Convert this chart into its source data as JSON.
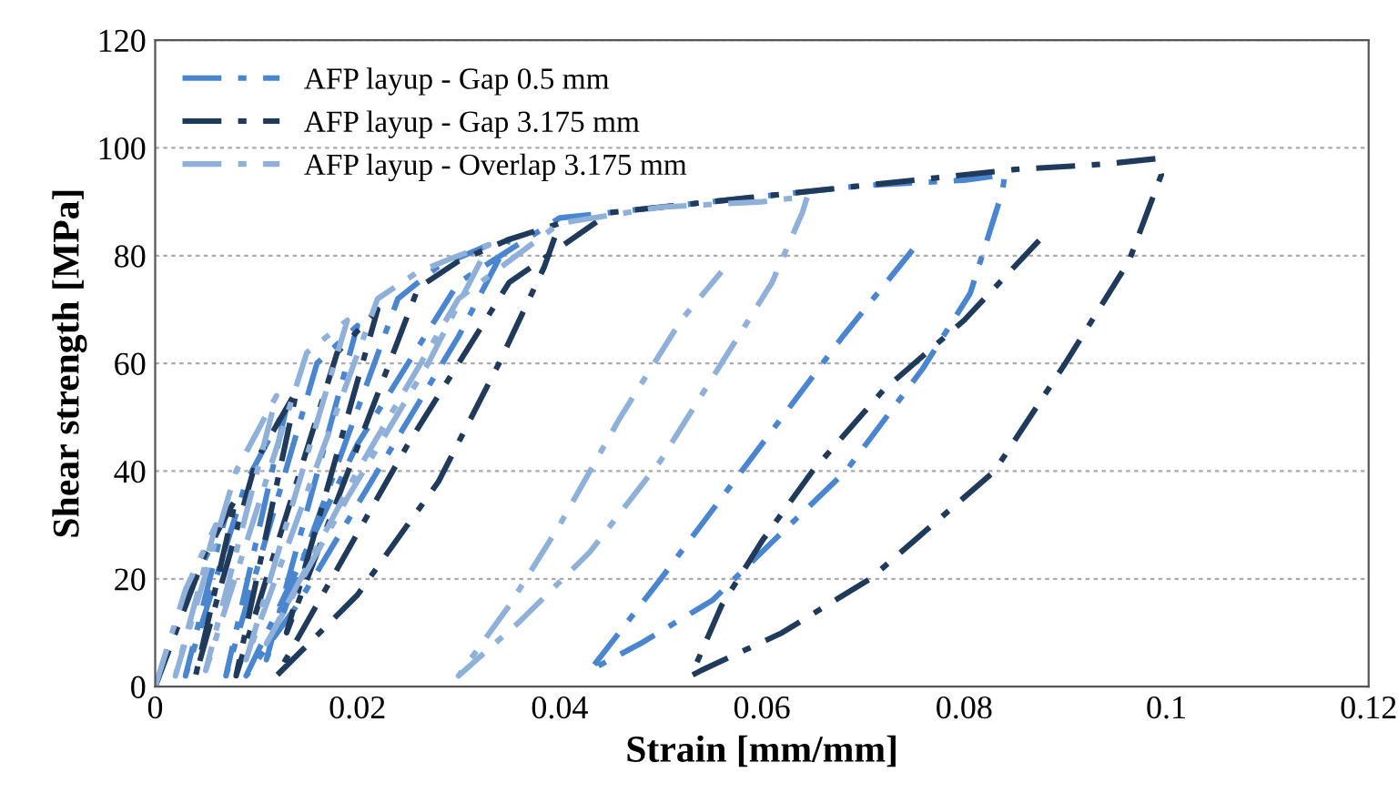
{
  "chart_data": {
    "type": "line",
    "xlabel": "Strain [mm/mm]",
    "ylabel": "Shear strength [MPa]",
    "xlim": [
      0,
      0.12
    ],
    "xticks": [
      0,
      0.02,
      0.04,
      0.06,
      0.08,
      0.1,
      0.12
    ],
    "ylim": [
      0,
      120
    ],
    "yticks": [
      0,
      20,
      40,
      60,
      80,
      100,
      120
    ],
    "grid": "y",
    "legend": "top left",
    "line_style": "dashdot",
    "marker": "none",
    "series": [
      {
        "name": "AFP layup - Gap 0.5 mm",
        "color": "#4a86d0",
        "x": [
          0,
          0.004,
          0.007,
          0.003,
          0.009,
          0.013,
          0.007,
          0.016,
          0.02,
          0.011,
          0.024,
          0.028,
          0.033,
          0.035,
          0.03,
          0.022,
          0.014,
          0.009,
          0.02,
          0.03,
          0.04,
          0.05,
          0.06,
          0.07,
          0.08,
          0.084,
          0.0838,
          0.0806,
          0.0759,
          0.0683,
          0.0611,
          0.0551,
          0.048,
          0.043,
          0.05,
          0.06,
          0.068,
          0.0753
        ],
        "values": [
          0,
          20,
          32,
          2,
          38,
          52,
          2,
          60,
          67,
          5,
          72,
          78,
          82,
          83,
          65,
          40,
          15,
          2,
          45,
          75,
          87,
          89,
          91,
          93,
          94,
          95,
          92,
          73,
          59,
          40,
          27,
          16,
          8,
          3,
          20,
          45,
          65,
          82
        ]
      },
      {
        "name": "AFP layup - Gap 3.175 mm",
        "color": "#1f3a5a",
        "x": [
          0,
          0.005,
          0.008,
          0.004,
          0.01,
          0.014,
          0.008,
          0.018,
          0.022,
          0.013,
          0.026,
          0.03,
          0.035,
          0.04,
          0.0385,
          0.034,
          0.028,
          0.02,
          0.012,
          0.025,
          0.035,
          0.045,
          0.055,
          0.065,
          0.075,
          0.085,
          0.094,
          0.099,
          0.0995,
          0.0963,
          0.09,
          0.083,
          0.0707,
          0.062,
          0.054,
          0.053,
          0.056,
          0.06,
          0.065,
          0.072,
          0.08,
          0.088
        ],
        "values": [
          0,
          25,
          35,
          2,
          42,
          55,
          2,
          62,
          70,
          10,
          74,
          79,
          83,
          86,
          78,
          60,
          38,
          17,
          2,
          45,
          75,
          88,
          90,
          92,
          94,
          96,
          97,
          98,
          95,
          79,
          60,
          40,
          20,
          10,
          3,
          2,
          15,
          27,
          40,
          55,
          68,
          84
        ]
      },
      {
        "name": "AFP layup - Overlap 3.175 mm",
        "color": "#8fb0d8",
        "x": [
          0,
          0.003,
          0.006,
          0.002,
          0.008,
          0.012,
          0.005,
          0.015,
          0.019,
          0.009,
          0.022,
          0.026,
          0.03,
          0.033,
          0.027,
          0.019,
          0.011,
          0.02,
          0.03,
          0.04,
          0.05,
          0.06,
          0.0645,
          0.064,
          0.061,
          0.056,
          0.05,
          0.043,
          0.036,
          0.03,
          0.035,
          0.04,
          0.046,
          0.052,
          0.056
        ],
        "values": [
          0,
          18,
          30,
          2,
          40,
          54,
          3,
          62,
          68,
          5,
          72,
          77,
          80,
          82,
          60,
          35,
          8,
          40,
          72,
          86,
          89,
          90,
          91,
          88,
          75,
          60,
          42,
          25,
          12,
          2,
          15,
          30,
          50,
          68,
          77
        ]
      }
    ]
  }
}
